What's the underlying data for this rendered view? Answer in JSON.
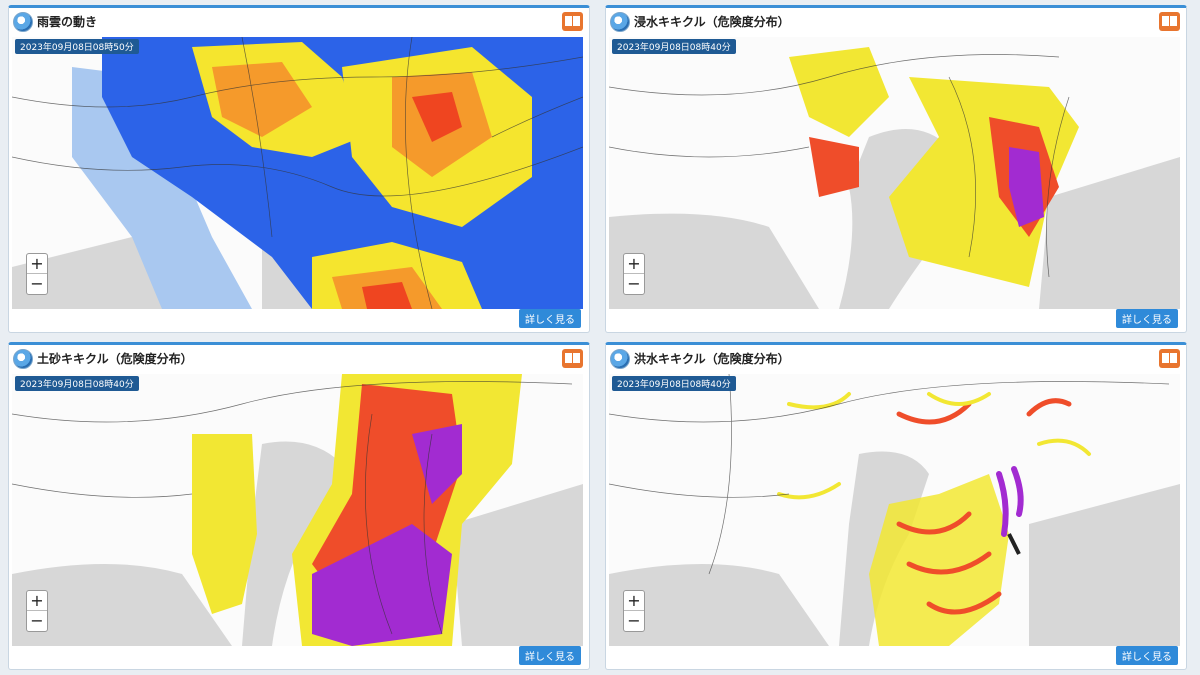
{
  "panels": [
    {
      "id": "rain",
      "title": "雨雲の動き",
      "timestamp": "2023年09月08日08時50分",
      "more_label": "詳しく見る",
      "zoom_in": "+",
      "zoom_out": "−",
      "icon": "rain-cloud-logo"
    },
    {
      "id": "inundation",
      "title": "浸水キキクル（危険度分布）",
      "timestamp": "2023年09月08日08時40分",
      "more_label": "詳しく見る",
      "zoom_in": "+",
      "zoom_out": "−",
      "icon": "kikikuru-logo"
    },
    {
      "id": "landslide",
      "title": "土砂キキクル（危険度分布）",
      "timestamp": "2023年09月08日08時40分",
      "more_label": "詳しく見る",
      "zoom_in": "+",
      "zoom_out": "−",
      "icon": "kikikuru-logo"
    },
    {
      "id": "flood",
      "title": "洪水キキクル（危険度分布）",
      "timestamp": "2023年09月08日08時40分",
      "more_label": "詳しく見る",
      "zoom_in": "+",
      "zoom_out": "−",
      "icon": "kikikuru-logo"
    }
  ],
  "colors": {
    "sea": "#d7d7d7",
    "land": "#fbfbfb",
    "border": "#333333",
    "rain_light": "#a9c8f0",
    "rain_blue": "#2c63e8",
    "rain_yellow": "#f5e52e",
    "rain_orange": "#f59a2b",
    "rain_red": "#ef4520",
    "risk_yellow": "#f2e733",
    "risk_red": "#ef4d2a",
    "risk_purple": "#a22bd1",
    "risk_black": "#222222"
  }
}
